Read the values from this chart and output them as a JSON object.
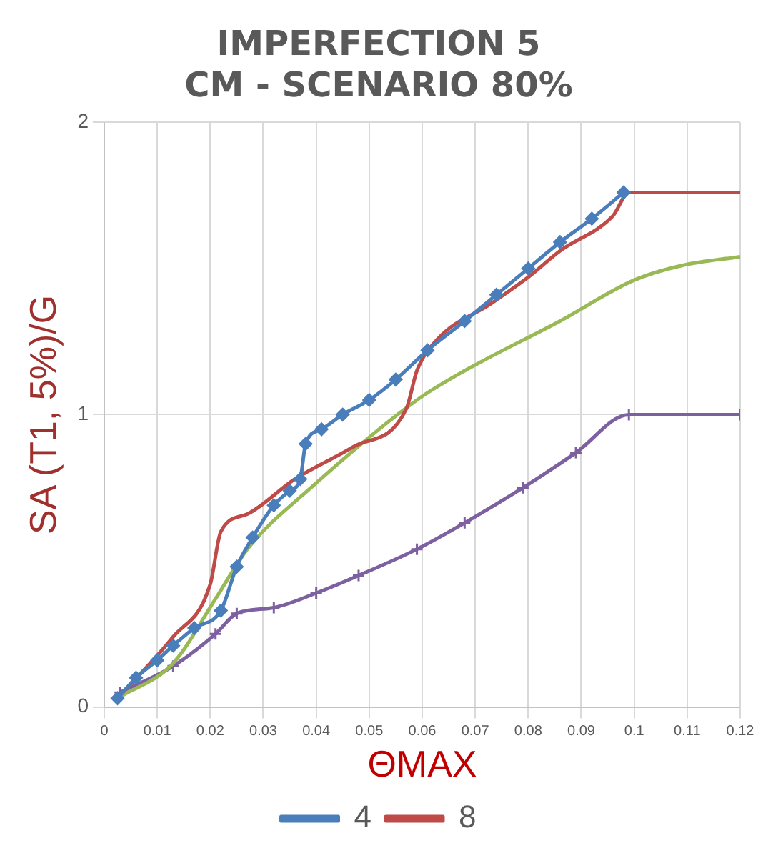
{
  "chart_data": {
    "type": "line",
    "title": "IMPERFECTION 5\nCM - SCENARIO 80%",
    "xlabel": "ΘMAX",
    "ylabel": "SA (T1, 5%)/G",
    "xlim": [
      0,
      0.12
    ],
    "xticks": [
      0,
      0.01,
      0.02,
      0.03,
      0.04,
      0.05,
      0.06,
      0.07,
      0.08,
      0.09,
      0.1,
      0.11,
      0.12
    ],
    "ylim": [
      0,
      2
    ],
    "yticks": [
      0,
      1,
      2
    ],
    "grid": true,
    "legend": "bottom",
    "series": [
      {
        "name": "4",
        "color": "#4a7ebb",
        "marker": "diamond",
        "x": [
          0.0025,
          0.006,
          0.01,
          0.013,
          0.017,
          0.022,
          0.025,
          0.028,
          0.032,
          0.035,
          0.037,
          0.038,
          0.041,
          0.045,
          0.05,
          0.055,
          0.061,
          0.068,
          0.074,
          0.08,
          0.086,
          0.092,
          0.098
        ],
        "values": [
          0.03,
          0.1,
          0.16,
          0.21,
          0.27,
          0.33,
          0.48,
          0.58,
          0.69,
          0.74,
          0.78,
          0.9,
          0.95,
          1.0,
          1.05,
          1.12,
          1.22,
          1.32,
          1.41,
          1.5,
          1.59,
          1.67,
          1.76
        ]
      },
      {
        "name": "8",
        "color": "#be4b48",
        "marker": "none",
        "x": [
          0.0025,
          0.013,
          0.02,
          0.022,
          0.027,
          0.036,
          0.047,
          0.057,
          0.059,
          0.063,
          0.073,
          0.08,
          0.086,
          0.096,
          0.099,
          0.12
        ],
        "values": [
          0.03,
          0.24,
          0.42,
          0.6,
          0.66,
          0.78,
          0.89,
          1.02,
          1.15,
          1.26,
          1.38,
          1.47,
          1.56,
          1.68,
          1.76,
          1.76
        ]
      },
      {
        "color": "#98b954",
        "marker": "none",
        "x": [
          0.0025,
          0.013,
          0.021,
          0.027,
          0.039,
          0.059,
          0.068,
          0.086,
          0.1,
          0.109,
          0.12
        ],
        "values": [
          0.03,
          0.15,
          0.37,
          0.54,
          0.75,
          1.05,
          1.15,
          1.32,
          1.46,
          1.51,
          1.54
        ]
      },
      {
        "color": "#7d60a0",
        "marker": "cross",
        "x": [
          0.003,
          0.013,
          0.021,
          0.025,
          0.032,
          0.04,
          0.048,
          0.059,
          0.068,
          0.079,
          0.089,
          0.099,
          0.12
        ],
        "values": [
          0.05,
          0.14,
          0.25,
          0.32,
          0.34,
          0.39,
          0.45,
          0.54,
          0.63,
          0.75,
          0.87,
          1.0,
          1.0
        ]
      }
    ]
  }
}
